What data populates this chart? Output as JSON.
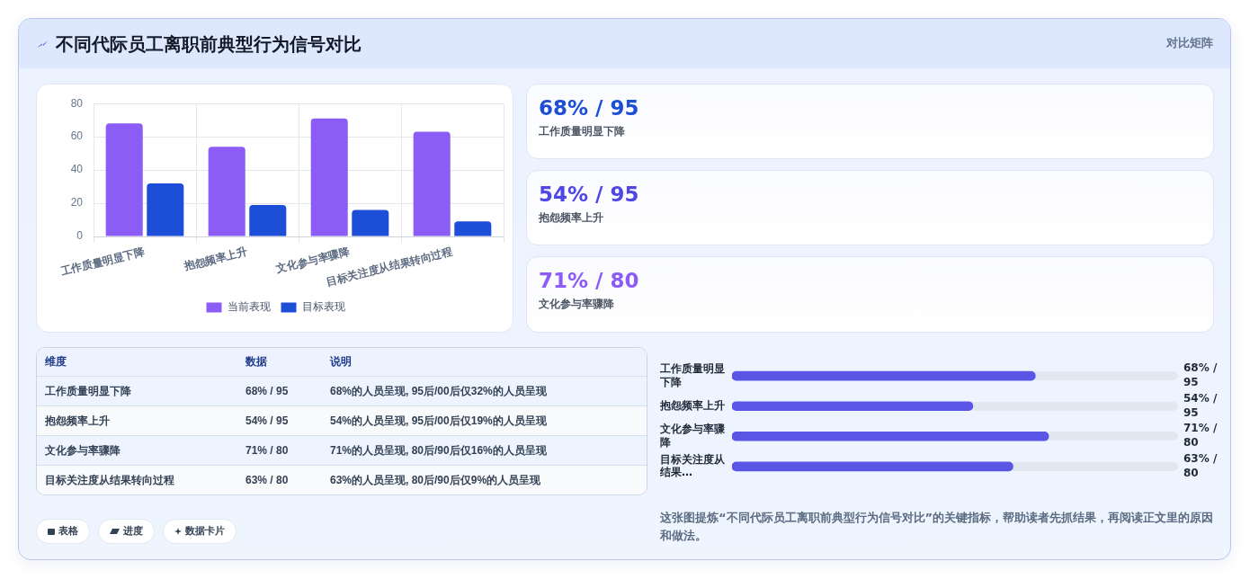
{
  "chart_data": [
    {
      "type": "bar",
      "title": "不同代际员工离职前典型行为信号对比",
      "annotations": [
        "对比矩阵"
      ],
      "categories": [
        "工作质量明显下降",
        "抱怨频率上升",
        "文化参与率骤降",
        "目标关注度从结果转向过程"
      ],
      "series": [
        {
          "name": "当前表现",
          "color": "#8b5cf6",
          "values": [
            68,
            54,
            71,
            63
          ]
        },
        {
          "name": "目标表现",
          "color": "#1d4ed8",
          "values": [
            32,
            19,
            16,
            9
          ]
        }
      ],
      "ylim": [
        0,
        80
      ],
      "yticks": [
        0,
        20,
        40,
        60,
        80
      ],
      "grid": true,
      "legend": "bottom"
    },
    {
      "type": "other",
      "annotations": [
        "68% / 95",
        "工作质量明显下降",
        "54% / 95",
        "抱怨频率上升",
        "71% / 80",
        "文化参与率骤降"
      ],
      "colors": [
        "#1d4ed8",
        "#4f46e5",
        "#8b5cf6"
      ]
    },
    {
      "type": "other",
      "annotations": [
        "维度",
        "数据",
        "说明",
        "工作质量明显下降",
        "68% / 95",
        "68%的人员呈现, 95后/00后仅32%的人员呈现",
        "抱怨频率上升",
        "54% / 95",
        "54%的人员呈现, 95后/00后仅19%的人员呈现",
        "文化参与率骤降",
        "71% / 80",
        "71%的人员呈现, 80后/90后仅16%的人员呈现",
        "目标关注度从结果转向过程",
        "63% / 80",
        "63%的人员呈现, 80后/90后仅9%的人员呈现"
      ]
    },
    {
      "type": "bar",
      "orientation": "horizontal",
      "categories": [
        "工作质量明显下降",
        "抱怨频率上升",
        "文化参与率骤降",
        "目标关注度从结果…"
      ],
      "values": [
        68,
        54,
        71,
        63
      ],
      "color": "#5b55e6",
      "value_labels": [
        "68% / 95",
        "54% / 95",
        "71% / 80",
        "63% / 80"
      ],
      "xlim": [
        0,
        100
      ],
      "tick_labels": "y",
      "annotations": [
        "这张图提炼“不同代际员工离职前典型行为信号对比”的关键指标，帮助读者先抓结果，再阅读正文里的原因和做法。"
      ]
    },
    {
      "type": "other",
      "annotations": [
        "表格",
        "进度",
        "数据卡片"
      ]
    }
  ]
}
